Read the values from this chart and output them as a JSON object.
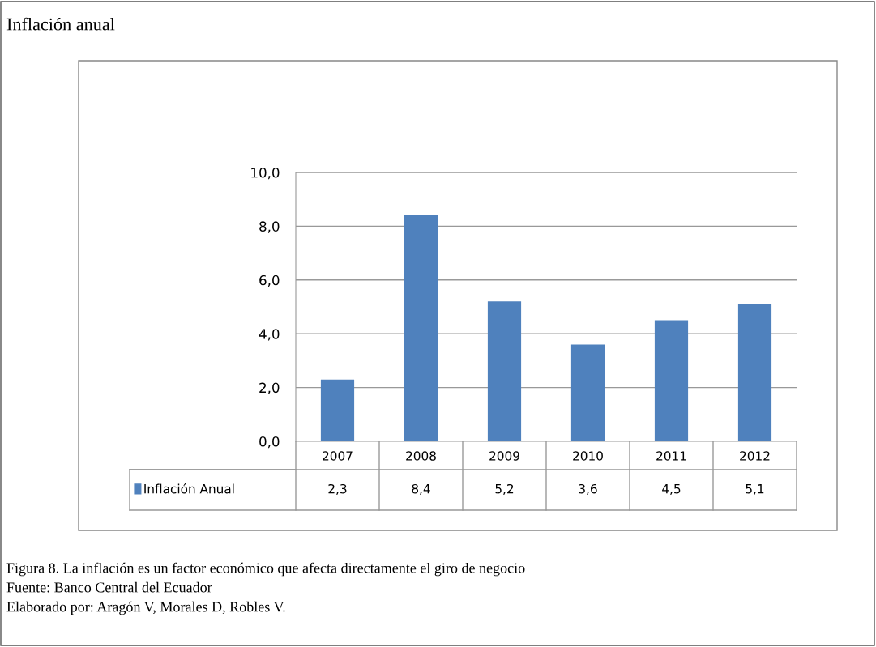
{
  "chart_data": {
    "type": "bar",
    "title": "Inflación anual",
    "categories": [
      "2007",
      "2008",
      "2009",
      "2010",
      "2011",
      "2012"
    ],
    "series": [
      {
        "name": "Inflación Anual",
        "color": "#4f81bd",
        "values": [
          2.3,
          8.4,
          5.2,
          3.6,
          4.5,
          5.1
        ],
        "value_labels": [
          "2,3",
          "8,4",
          "5,2",
          "3,6",
          "4,5",
          "5,1"
        ]
      }
    ],
    "ylim": [
      0,
      10
    ],
    "yticks": [
      {
        "value": 0,
        "label": "0,0"
      },
      {
        "value": 2,
        "label": "2,0"
      },
      {
        "value": 4,
        "label": "4,0"
      },
      {
        "value": 6,
        "label": "6,0"
      },
      {
        "value": 8,
        "label": "8,0"
      },
      {
        "value": 10,
        "label": "10,0"
      }
    ],
    "grid": "y",
    "legend": "bottom",
    "annotations": [
      "Figura 8. La inflación es un factor económico que afecta directamente el giro de negocio",
      "Fuente: Banco Central del Ecuador",
      "Elaborado por: Aragón V, Morales D, Robles V."
    ]
  }
}
